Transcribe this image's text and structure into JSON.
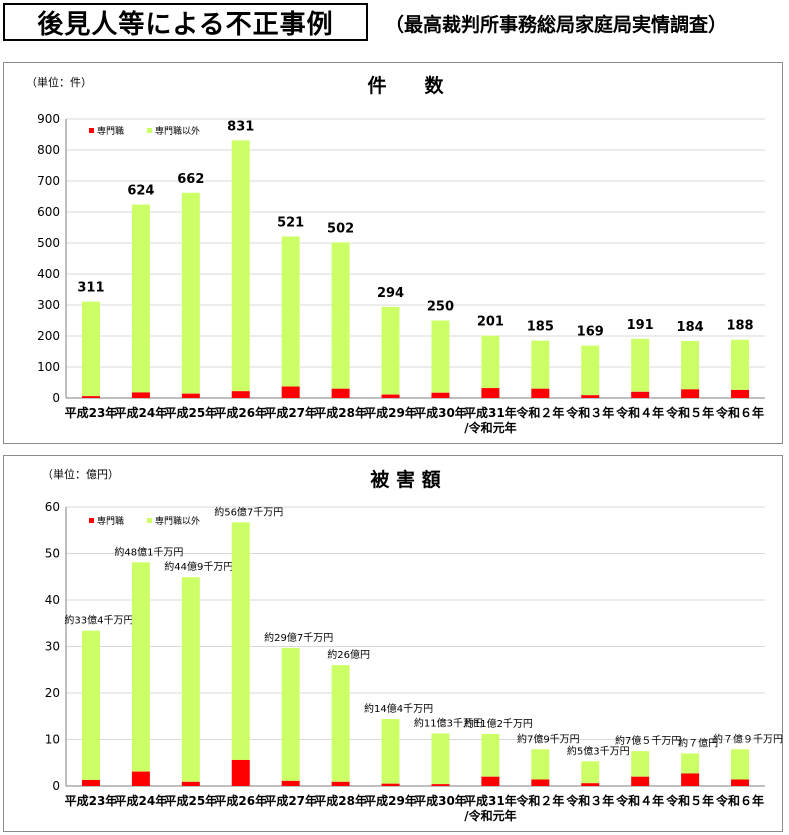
{
  "header": {
    "title": "後見人等による不正事例",
    "source": "（最高裁判所事務総局家庭局実情調査）"
  },
  "legend": {
    "professional": "専門職",
    "non_professional": "専門職以外"
  },
  "colors": {
    "professional": "#ff0000",
    "non_professional": "#ccff66",
    "grid": "#d9d9d9",
    "axis": "#7f7f7f",
    "frame": "#8c8c8c"
  },
  "chart_data": [
    {
      "type": "bar",
      "stacked": true,
      "title": "件　　数",
      "unit_label": "（単位：件）",
      "categories": [
        "平成23年",
        "平成24年",
        "平成25年",
        "平成26年",
        "平成27年",
        "平成28年",
        "平成29年",
        "平成30年",
        "平成31年",
        "令和２年",
        "令和３年",
        "令和４年",
        "令和５年",
        "令和６年"
      ],
      "category_sublabels": [
        "",
        "",
        "",
        "",
        "",
        "",
        "",
        "",
        "/令和元年",
        "",
        "",
        "",
        "",
        ""
      ],
      "series": [
        {
          "name": "専門職",
          "values": [
            6,
            18,
            14,
            22,
            37,
            30,
            11,
            17,
            32,
            30,
            9,
            20,
            28,
            26
          ]
        },
        {
          "name": "専門職以外",
          "values": [
            305,
            606,
            648,
            809,
            484,
            472,
            283,
            233,
            169,
            155,
            160,
            171,
            156,
            162
          ]
        }
      ],
      "totals": [
        311,
        624,
        662,
        831,
        521,
        502,
        294,
        250,
        201,
        185,
        169,
        191,
        184,
        188
      ],
      "data_labels": [
        "311",
        "624",
        "662",
        "831",
        "521",
        "502",
        "294",
        "250",
        "201",
        "185",
        "169",
        "191",
        "184",
        "188"
      ],
      "ylim": [
        0,
        900
      ],
      "yticks": [
        0,
        100,
        200,
        300,
        400,
        500,
        600,
        700,
        800,
        900
      ],
      "grid": true,
      "legend_position": "top-left"
    },
    {
      "type": "bar",
      "stacked": true,
      "title": "被 害 額",
      "unit_label": "（単位：億円）",
      "categories": [
        "平成23年",
        "平成24年",
        "平成25年",
        "平成26年",
        "平成27年",
        "平成28年",
        "平成29年",
        "平成30年",
        "平成31年",
        "令和２年",
        "令和３年",
        "令和４年",
        "令和５年",
        "令和６年"
      ],
      "category_sublabels": [
        "",
        "",
        "",
        "",
        "",
        "",
        "",
        "",
        "/令和元年",
        "",
        "",
        "",
        "",
        ""
      ],
      "series": [
        {
          "name": "専門職",
          "values": [
            1.3,
            3.1,
            0.9,
            5.6,
            1.1,
            0.9,
            0.5,
            0.4,
            2.0,
            1.4,
            0.6,
            2.0,
            2.7,
            1.4
          ]
        },
        {
          "name": "専門職以外",
          "values": [
            32.1,
            45.0,
            44.0,
            51.1,
            28.6,
            25.1,
            13.9,
            10.9,
            9.2,
            6.5,
            4.7,
            5.5,
            4.3,
            6.5
          ]
        }
      ],
      "totals": [
        33.4,
        48.1,
        44.9,
        56.7,
        29.7,
        26.0,
        14.4,
        11.3,
        11.2,
        7.9,
        5.3,
        7.5,
        7.0,
        7.9
      ],
      "data_labels": [
        "約33億4千万円",
        "約48億1千万円",
        "約44億9千万円",
        "約56億7千万円",
        "約29億7千万円",
        "約26億円",
        "約14億4千万円",
        "約11億3千万円",
        "約11億2千万円",
        "約7億9千万円",
        "約5億3千万円",
        "約7億５千万円",
        "約７億円",
        "約７億９千万円"
      ],
      "ylim": [
        0,
        60
      ],
      "yticks": [
        0,
        10,
        20,
        30,
        40,
        50,
        60
      ],
      "grid": true,
      "legend_position": "top-left"
    }
  ]
}
